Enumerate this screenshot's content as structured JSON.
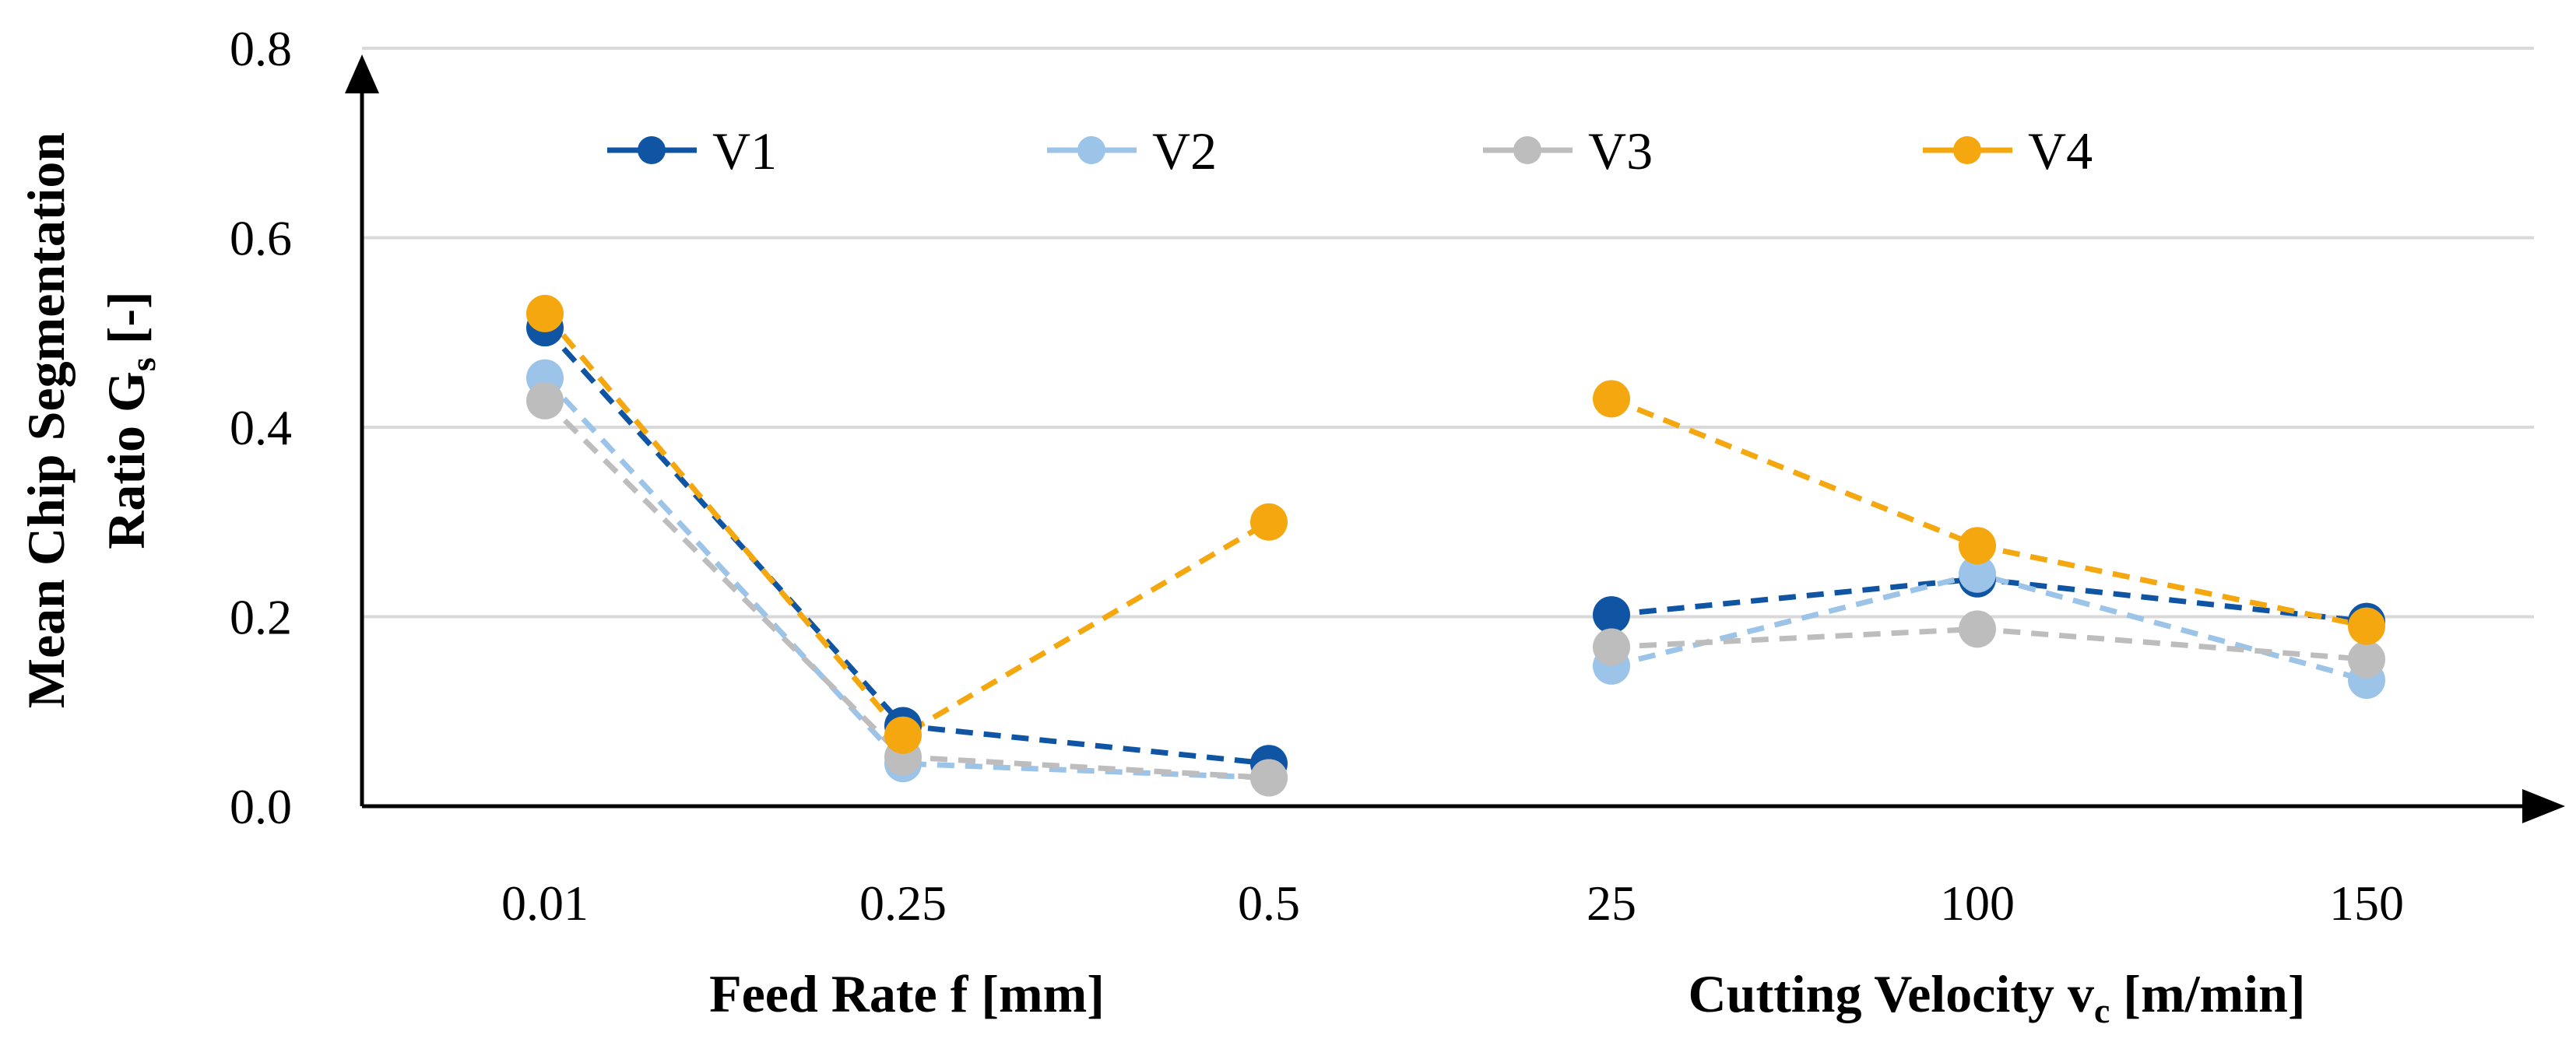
{
  "chart_data": {
    "type": "line",
    "y_axis": {
      "title": "Mean Chip Segmentation Ratio Gs [-]",
      "title_line1": "Mean Chip Segmentation",
      "title_line2_main": "Ratio G",
      "title_line2_sub": "s",
      "title_line2_tail": " [-]",
      "ylim": [
        0,
        0.8
      ],
      "ticks": [
        {
          "value": 0.0,
          "label": "0.0"
        },
        {
          "value": 0.2,
          "label": "0.2"
        },
        {
          "value": 0.4,
          "label": "0.4"
        },
        {
          "value": 0.6,
          "label": "0.6"
        },
        {
          "value": 0.8,
          "label": "0.8"
        }
      ],
      "grid": true
    },
    "x_groups": [
      {
        "title": "Feed Rate f [mm]",
        "title_main": "Feed Rate f [mm]",
        "title_sub": "",
        "title_tail": "",
        "categories": [
          "0.01",
          "0.25",
          "0.5"
        ]
      },
      {
        "title": "Cutting Velocity vc [m/min]",
        "title_main": "Cutting Velocity v",
        "title_sub": "c",
        "title_tail": " [m/min]",
        "categories": [
          "25",
          "100",
          "150"
        ]
      }
    ],
    "legend_position": "top",
    "series": [
      {
        "name": "V1",
        "color": "#0F55A3",
        "groups": [
          [
            0.505,
            0.085,
            0.045
          ],
          [
            0.202,
            0.24,
            0.195
          ]
        ]
      },
      {
        "name": "V2",
        "color": "#9CC3E8",
        "groups": [
          [
            0.452,
            0.045,
            0.03
          ],
          [
            0.148,
            0.245,
            0.133
          ]
        ]
      },
      {
        "name": "V3",
        "color": "#BDBDBD",
        "groups": [
          [
            0.428,
            0.052,
            0.03
          ],
          [
            0.168,
            0.187,
            0.155
          ]
        ]
      },
      {
        "name": "V4",
        "color": "#F4A70E",
        "groups": [
          [
            0.52,
            0.075,
            0.3
          ],
          [
            0.43,
            0.275,
            0.19
          ]
        ]
      }
    ]
  }
}
